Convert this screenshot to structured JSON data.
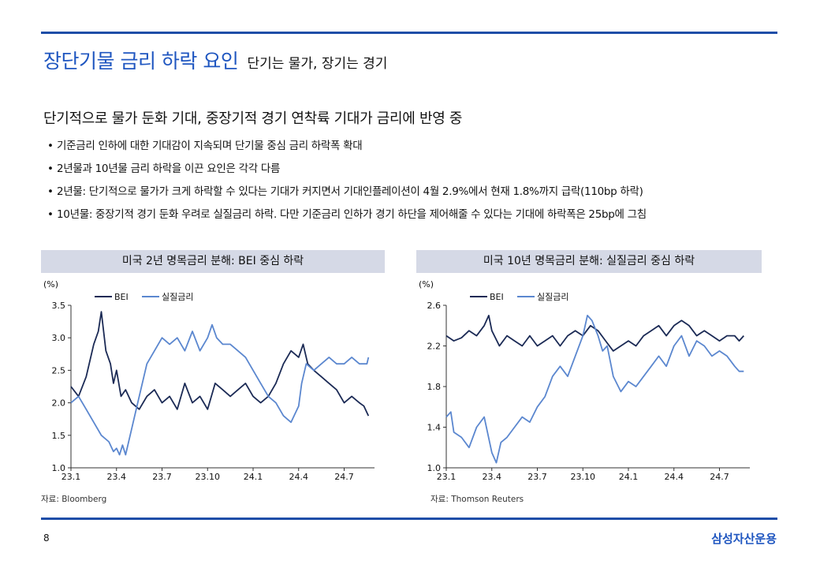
{
  "header": {
    "title_main": "장단기물 금리 하락 요인",
    "title_sub": "단기는 물가, 장기는 경기"
  },
  "subheading": "단기적으로 물가 둔화 기대, 중장기적 경기 연착륙 기대가 금리에 반영 중",
  "bullets": [
    "기준금리 인하에 대한 기대감이 지속되며 단기물 중심 금리 하락폭 확대",
    "2년물과 10년물 금리 하락을 이끈 요인은 각각 다름",
    "2년물: 단기적으로 물가가 크게 하락할 수 있다는 기대가 커지면서 기대인플레이션이 4월 2.9%에서 현재 1.8%까지 급락(110bp 하락)",
    "10년물: 중장기적 경기 둔화 우려로 실질금리 하락. 다만 기준금리 인하가 경기 하단을 제어해줄 수 있다는 기대에 하락폭은 25bp에 그침"
  ],
  "footer": {
    "page": "8",
    "brand": "삼성자산운용"
  },
  "colors": {
    "accent": "#1f56c0",
    "bei": "#1b2a55",
    "real": "#5b87cf",
    "header_bg": "#d5d9e6"
  },
  "chart_data": [
    {
      "type": "line",
      "title": "미국 2년 명목금리 분해: BEI 중심 하락",
      "ylabel": "(%)",
      "ylim": [
        1.0,
        3.5
      ],
      "yticks": [
        1.0,
        1.5,
        2.0,
        2.5,
        3.0,
        3.5
      ],
      "ytick_labels": [
        "1.0",
        "1.5",
        "2.0",
        "2.5",
        "3.0",
        "3.5"
      ],
      "xlim": [
        0,
        20
      ],
      "xticks": [
        0,
        3,
        6,
        9,
        12,
        15,
        18
      ],
      "xtick_labels": [
        "23.1",
        "23.4",
        "23.7",
        "23.10",
        "24.1",
        "24.4",
        "24.7"
      ],
      "source": "자료: Bloomberg",
      "series": [
        {
          "name": "BEI",
          "color": "#1b2a55",
          "x": [
            0,
            0.5,
            1,
            1.5,
            1.8,
            2,
            2.3,
            2.6,
            2.8,
            3,
            3.3,
            3.6,
            4,
            4.5,
            5,
            5.5,
            6,
            6.5,
            7,
            7.5,
            8,
            8.5,
            9,
            9.5,
            10,
            10.5,
            11,
            11.5,
            12,
            12.5,
            13,
            13.5,
            14,
            14.5,
            15,
            15.3,
            15.6,
            16,
            16.5,
            17,
            17.5,
            18,
            18.5,
            19,
            19.3,
            19.6
          ],
          "values": [
            2.25,
            2.1,
            2.4,
            2.9,
            3.1,
            3.4,
            2.8,
            2.6,
            2.3,
            2.5,
            2.1,
            2.2,
            2.0,
            1.9,
            2.1,
            2.2,
            2.0,
            2.1,
            1.9,
            2.3,
            2.0,
            2.1,
            1.9,
            2.3,
            2.2,
            2.1,
            2.2,
            2.3,
            2.1,
            2.0,
            2.1,
            2.3,
            2.6,
            2.8,
            2.7,
            2.9,
            2.6,
            2.5,
            2.4,
            2.3,
            2.2,
            2.0,
            2.1,
            2.0,
            1.95,
            1.8
          ]
        },
        {
          "name": "실질금리",
          "color": "#5b87cf",
          "x": [
            0,
            0.5,
            1,
            1.5,
            2,
            2.5,
            2.8,
            3,
            3.2,
            3.4,
            3.6,
            4,
            4.5,
            5,
            5.5,
            6,
            6.5,
            7,
            7.5,
            8,
            8.5,
            9,
            9.3,
            9.6,
            10,
            10.5,
            11,
            11.5,
            12,
            12.5,
            13,
            13.5,
            14,
            14.5,
            15,
            15.2,
            15.5,
            16,
            16.5,
            17,
            17.5,
            18,
            18.5,
            19,
            19.5,
            19.6
          ],
          "values": [
            2.0,
            2.1,
            1.9,
            1.7,
            1.5,
            1.4,
            1.25,
            1.3,
            1.2,
            1.35,
            1.2,
            1.6,
            2.1,
            2.6,
            2.8,
            3.0,
            2.9,
            3.0,
            2.8,
            3.1,
            2.8,
            3.0,
            3.2,
            3.0,
            2.9,
            2.9,
            2.8,
            2.7,
            2.5,
            2.3,
            2.1,
            2.0,
            1.8,
            1.7,
            1.95,
            2.3,
            2.6,
            2.5,
            2.6,
            2.7,
            2.6,
            2.6,
            2.7,
            2.6,
            2.6,
            2.7
          ]
        }
      ]
    },
    {
      "type": "line",
      "title": "미국 10년 명목금리 분해: 실질금리 중심 하락",
      "ylabel": "(%)",
      "ylim": [
        1.0,
        2.6
      ],
      "yticks": [
        1.0,
        1.4,
        1.8,
        2.2,
        2.6
      ],
      "ytick_labels": [
        "1.0",
        "1.4",
        "1.8",
        "2.2",
        "2.6"
      ],
      "xlim": [
        0,
        20
      ],
      "xticks": [
        0,
        3,
        6,
        9,
        12,
        15,
        18
      ],
      "xtick_labels": [
        "23.1",
        "23.4",
        "23.7",
        "23.10",
        "24.1",
        "24.4",
        "24.7"
      ],
      "source": "자료: Thomson Reuters",
      "series": [
        {
          "name": "BEI",
          "color": "#1b2a55",
          "x": [
            0,
            0.5,
            1,
            1.5,
            2,
            2.5,
            2.8,
            3,
            3.5,
            4,
            4.5,
            5,
            5.5,
            6,
            6.5,
            7,
            7.5,
            8,
            8.5,
            9,
            9.5,
            10,
            10.5,
            11,
            11.5,
            12,
            12.5,
            13,
            13.5,
            14,
            14.5,
            15,
            15.5,
            16,
            16.5,
            17,
            17.5,
            18,
            18.5,
            19,
            19.3,
            19.6
          ],
          "values": [
            2.3,
            2.25,
            2.28,
            2.35,
            2.3,
            2.4,
            2.5,
            2.35,
            2.2,
            2.3,
            2.25,
            2.2,
            2.3,
            2.2,
            2.25,
            2.3,
            2.2,
            2.3,
            2.35,
            2.3,
            2.4,
            2.35,
            2.25,
            2.15,
            2.2,
            2.25,
            2.2,
            2.3,
            2.35,
            2.4,
            2.3,
            2.4,
            2.45,
            2.4,
            2.3,
            2.35,
            2.3,
            2.25,
            2.3,
            2.3,
            2.25,
            2.3
          ]
        },
        {
          "name": "실질금리",
          "color": "#5b87cf",
          "x": [
            0,
            0.3,
            0.5,
            1,
            1.5,
            2,
            2.5,
            3,
            3.3,
            3.6,
            4,
            4.5,
            5,
            5.5,
            6,
            6.5,
            7,
            7.5,
            8,
            8.5,
            9,
            9.3,
            9.6,
            10,
            10.3,
            10.6,
            11,
            11.5,
            12,
            12.5,
            13,
            13.5,
            14,
            14.5,
            15,
            15.5,
            16,
            16.5,
            17,
            17.5,
            18,
            18.5,
            19,
            19.3,
            19.6
          ],
          "values": [
            1.5,
            1.55,
            1.35,
            1.3,
            1.2,
            1.4,
            1.5,
            1.15,
            1.05,
            1.25,
            1.3,
            1.4,
            1.5,
            1.45,
            1.6,
            1.7,
            1.9,
            2.0,
            1.9,
            2.1,
            2.3,
            2.5,
            2.45,
            2.3,
            2.15,
            2.2,
            1.9,
            1.75,
            1.85,
            1.8,
            1.9,
            2.0,
            2.1,
            2.0,
            2.2,
            2.3,
            2.1,
            2.25,
            2.2,
            2.1,
            2.15,
            2.1,
            2.0,
            1.95,
            1.95
          ]
        }
      ]
    }
  ]
}
